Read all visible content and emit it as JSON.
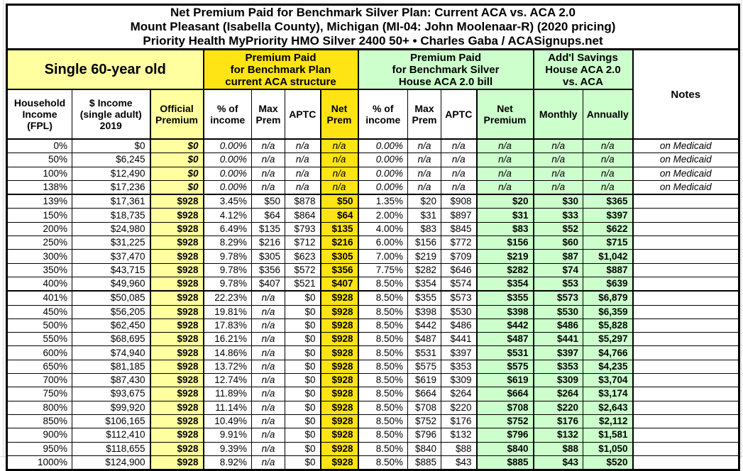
{
  "title": {
    "line1": "Net Premium Paid for Benchmark Silver Plan: Current ACA vs. ACA 2.0",
    "line2": "Mount Pleasant (Isabella County), Michigan (MI-04: John Moolenaar-R) (2020 pricing)",
    "line3": "Priority Health MyPriority HMO Silver 2400 50+ • Charles Gaba / ACASignups.net"
  },
  "group_headers": {
    "demographic": "Single 60-year old",
    "aca_current": "Premium Paid\nfor Benchmark Plan\ncurrent ACA structure",
    "aca_2": "Premium Paid\nfor Benchmark Silver\nHouse ACA 2.0 bill",
    "savings": "Add'l Savings\nHouse ACA 2.0\nvs. ACA",
    "notes": "Notes"
  },
  "columns": [
    "Household\nIncome\n(FPL)",
    "$ Income\n(single adult)\n2019",
    "Official\nPremium",
    "% of\nincome",
    "Max\nPrem",
    "APTC",
    "Net\nPrem",
    "% of\nincome",
    "Max\nPrem",
    "APTC",
    "Net\nPremium",
    "Monthly",
    "Annually"
  ],
  "colors": {
    "pale_yellow": "#FFFFA0",
    "bright_yellow": "#FFE413",
    "pale_green": "#CCFFCC",
    "border": "#000000"
  },
  "break_row_indices": [
    4,
    11
  ],
  "chart_data": {
    "type": "table",
    "column_keys": [
      "fpl",
      "income",
      "official_premium",
      "aca_pct_income",
      "aca_max_prem",
      "aca_aptc",
      "aca_net_prem",
      "house_pct_income",
      "house_max_prem",
      "house_aptc",
      "house_net_premium",
      "savings_monthly",
      "savings_annually",
      "notes"
    ],
    "rows": [
      {
        "m": true,
        "c": [
          "0%",
          "$0",
          "$0",
          "0.00%",
          "n/a",
          "n/a",
          "n/a",
          "0.00%",
          "n/a",
          "n/a",
          "n/a",
          "n/a",
          "n/a",
          "on Medicaid"
        ]
      },
      {
        "m": true,
        "c": [
          "50%",
          "$6,245",
          "$0",
          "0.00%",
          "n/a",
          "n/a",
          "n/a",
          "0.00%",
          "n/a",
          "n/a",
          "n/a",
          "n/a",
          "n/a",
          "on Medicaid"
        ]
      },
      {
        "m": true,
        "c": [
          "100%",
          "$12,490",
          "$0",
          "0.00%",
          "n/a",
          "n/a",
          "n/a",
          "0.00%",
          "n/a",
          "n/a",
          "n/a",
          "n/a",
          "n/a",
          "on Medicaid"
        ]
      },
      {
        "m": true,
        "c": [
          "138%",
          "$17,236",
          "$0",
          "0.00%",
          "n/a",
          "n/a",
          "n/a",
          "0.00%",
          "n/a",
          "n/a",
          "n/a",
          "n/a",
          "n/a",
          "on Medicaid"
        ]
      },
      {
        "m": false,
        "c": [
          "139%",
          "$17,361",
          "$928",
          "3.45%",
          "$50",
          "$878",
          "$50",
          "1.35%",
          "$20",
          "$908",
          "$20",
          "$30",
          "$365",
          ""
        ]
      },
      {
        "m": false,
        "c": [
          "150%",
          "$18,735",
          "$928",
          "4.12%",
          "$64",
          "$864",
          "$64",
          "2.00%",
          "$31",
          "$897",
          "$31",
          "$33",
          "$397",
          ""
        ]
      },
      {
        "m": false,
        "c": [
          "200%",
          "$24,980",
          "$928",
          "6.49%",
          "$135",
          "$793",
          "$135",
          "4.00%",
          "$83",
          "$845",
          "$83",
          "$52",
          "$622",
          ""
        ]
      },
      {
        "m": false,
        "c": [
          "250%",
          "$31,225",
          "$928",
          "8.29%",
          "$216",
          "$712",
          "$216",
          "6.00%",
          "$156",
          "$772",
          "$156",
          "$60",
          "$715",
          ""
        ]
      },
      {
        "m": false,
        "c": [
          "300%",
          "$37,470",
          "$928",
          "9.78%",
          "$305",
          "$623",
          "$305",
          "7.00%",
          "$219",
          "$709",
          "$219",
          "$87",
          "$1,042",
          ""
        ]
      },
      {
        "m": false,
        "c": [
          "350%",
          "$43,715",
          "$928",
          "9.78%",
          "$356",
          "$572",
          "$356",
          "7.75%",
          "$282",
          "$646",
          "$282",
          "$74",
          "$887",
          ""
        ]
      },
      {
        "m": false,
        "c": [
          "400%",
          "$49,960",
          "$928",
          "9.78%",
          "$407",
          "$521",
          "$407",
          "8.50%",
          "$354",
          "$574",
          "$354",
          "$53",
          "$639",
          ""
        ]
      },
      {
        "m": false,
        "c": [
          "401%",
          "$50,085",
          "$928",
          "22.23%",
          "n/a",
          "$0",
          "$928",
          "8.50%",
          "$355",
          "$573",
          "$355",
          "$573",
          "$6,879",
          ""
        ]
      },
      {
        "m": false,
        "c": [
          "450%",
          "$56,205",
          "$928",
          "19.81%",
          "n/a",
          "$0",
          "$928",
          "8.50%",
          "$398",
          "$530",
          "$398",
          "$530",
          "$6,359",
          ""
        ]
      },
      {
        "m": false,
        "c": [
          "500%",
          "$62,450",
          "$928",
          "17.83%",
          "n/a",
          "$0",
          "$928",
          "8.50%",
          "$442",
          "$486",
          "$442",
          "$486",
          "$5,828",
          ""
        ]
      },
      {
        "m": false,
        "c": [
          "550%",
          "$68,695",
          "$928",
          "16.21%",
          "n/a",
          "$0",
          "$928",
          "8.50%",
          "$487",
          "$441",
          "$487",
          "$441",
          "$5,297",
          ""
        ]
      },
      {
        "m": false,
        "c": [
          "600%",
          "$74,940",
          "$928",
          "14.86%",
          "n/a",
          "$0",
          "$928",
          "8.50%",
          "$531",
          "$397",
          "$531",
          "$397",
          "$4,766",
          ""
        ]
      },
      {
        "m": false,
        "c": [
          "650%",
          "$81,185",
          "$928",
          "13.72%",
          "n/a",
          "$0",
          "$928",
          "8.50%",
          "$575",
          "$353",
          "$575",
          "$353",
          "$4,235",
          ""
        ]
      },
      {
        "m": false,
        "c": [
          "700%",
          "$87,430",
          "$928",
          "12.74%",
          "n/a",
          "$0",
          "$928",
          "8.50%",
          "$619",
          "$309",
          "$619",
          "$309",
          "$3,704",
          ""
        ]
      },
      {
        "m": false,
        "c": [
          "750%",
          "$93,675",
          "$928",
          "11.89%",
          "n/a",
          "$0",
          "$928",
          "8.50%",
          "$664",
          "$264",
          "$664",
          "$264",
          "$3,174",
          ""
        ]
      },
      {
        "m": false,
        "c": [
          "800%",
          "$99,920",
          "$928",
          "11.14%",
          "n/a",
          "$0",
          "$928",
          "8.50%",
          "$708",
          "$220",
          "$708",
          "$220",
          "$2,643",
          ""
        ]
      },
      {
        "m": false,
        "c": [
          "850%",
          "$106,165",
          "$928",
          "10.49%",
          "n/a",
          "$0",
          "$928",
          "8.50%",
          "$752",
          "$176",
          "$752",
          "$176",
          "$2,112",
          ""
        ]
      },
      {
        "m": false,
        "c": [
          "900%",
          "$112,410",
          "$928",
          "9.91%",
          "n/a",
          "$0",
          "$928",
          "8.50%",
          "$796",
          "$132",
          "$796",
          "$132",
          "$1,581",
          ""
        ]
      },
      {
        "m": false,
        "c": [
          "950%",
          "$118,655",
          "$928",
          "9.39%",
          "n/a",
          "$0",
          "$928",
          "8.50%",
          "$840",
          "$88",
          "$840",
          "$88",
          "$1,050",
          ""
        ]
      },
      {
        "m": false,
        "c": [
          "1000%",
          "$124,900",
          "$928",
          "8.92%",
          "n/a",
          "$0",
          "$928",
          "8.50%",
          "$885",
          "$43",
          "$885",
          "$43",
          "$520",
          ""
        ]
      }
    ]
  }
}
